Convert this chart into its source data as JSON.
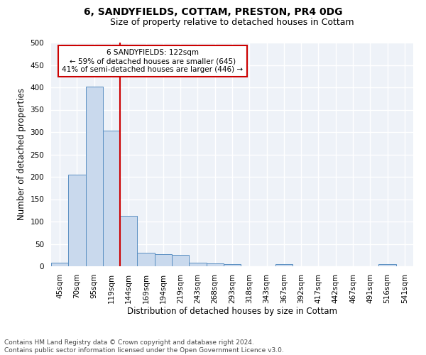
{
  "title": "6, SANDYFIELDS, COTTAM, PRESTON, PR4 0DG",
  "subtitle": "Size of property relative to detached houses in Cottam",
  "xlabel": "Distribution of detached houses by size in Cottam",
  "ylabel": "Number of detached properties",
  "bar_labels": [
    "45sqm",
    "70sqm",
    "95sqm",
    "119sqm",
    "144sqm",
    "169sqm",
    "194sqm",
    "219sqm",
    "243sqm",
    "268sqm",
    "293sqm",
    "318sqm",
    "343sqm",
    "367sqm",
    "392sqm",
    "417sqm",
    "442sqm",
    "467sqm",
    "491sqm",
    "516sqm",
    "541sqm"
  ],
  "bar_values": [
    8,
    204,
    401,
    303,
    113,
    30,
    27,
    25,
    8,
    6,
    4,
    0,
    0,
    4,
    0,
    0,
    0,
    0,
    0,
    5,
    0
  ],
  "bar_color": "#c9d9ed",
  "bar_edge_color": "#5a8fc2",
  "vline_x": 3.5,
  "vline_color": "#cc0000",
  "annotation_line1": "6 SANDYFIELDS: 122sqm",
  "annotation_line2": "← 59% of detached houses are smaller (645)",
  "annotation_line3": "41% of semi-detached houses are larger (446) →",
  "annotation_box_color": "#ffffff",
  "annotation_box_edge_color": "#cc0000",
  "ylim": [
    0,
    500
  ],
  "yticks": [
    0,
    50,
    100,
    150,
    200,
    250,
    300,
    350,
    400,
    450,
    500
  ],
  "footer": "Contains HM Land Registry data © Crown copyright and database right 2024.\nContains public sector information licensed under the Open Government Licence v3.0.",
  "fig_background_color": "#ffffff",
  "plot_background_color": "#eef2f8",
  "grid_color": "#ffffff",
  "title_fontsize": 10,
  "subtitle_fontsize": 9,
  "axis_label_fontsize": 8.5,
  "tick_fontsize": 7.5,
  "annotation_fontsize": 7.5,
  "footer_fontsize": 6.5
}
